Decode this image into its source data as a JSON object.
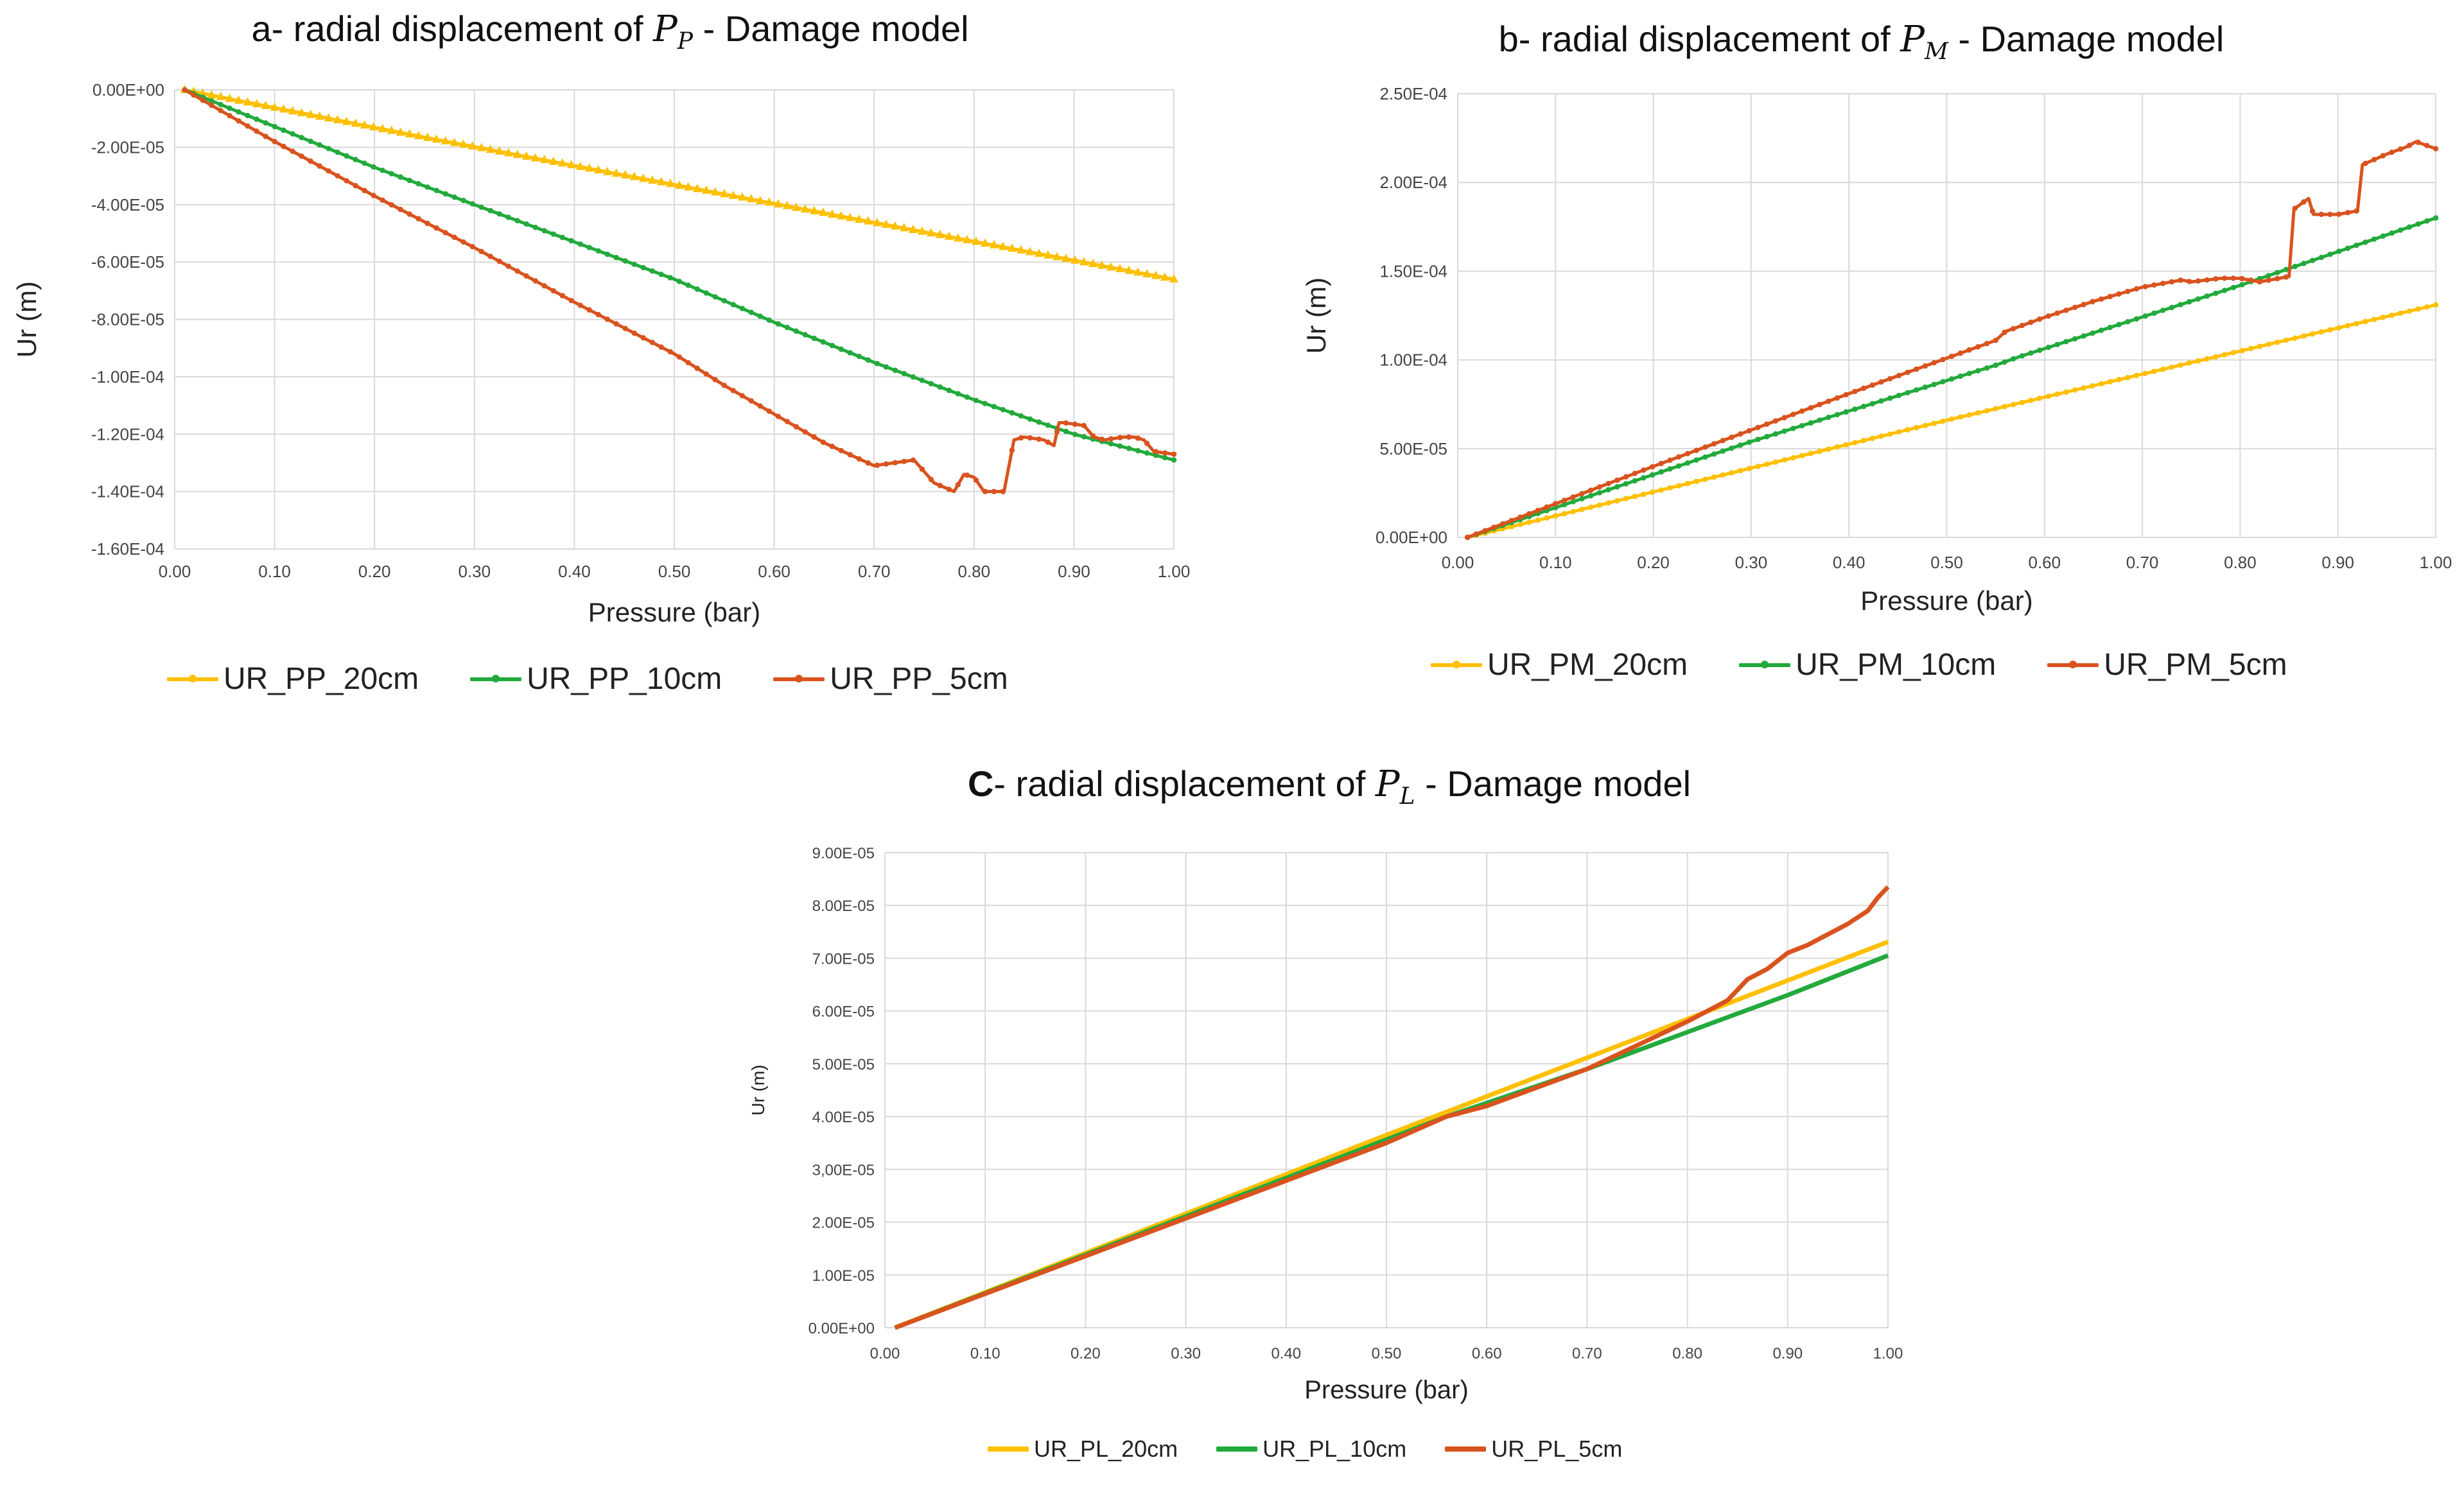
{
  "chart_data": [
    {
      "type": "line",
      "title_prefix": "a- radial displacement of ",
      "title_symbol": "P",
      "title_subscript": "P",
      "title_suffix": " - Damage model",
      "xlabel": "Pressure (bar)",
      "ylabel": "Ur (m)",
      "xlim": [
        0,
        1
      ],
      "ylim": [
        -0.00016,
        0
      ],
      "x_ticks": [
        "0.00",
        "0.10",
        "0.20",
        "0.30",
        "0.40",
        "0.50",
        "0.60",
        "0.70",
        "0.80",
        "0.90",
        "1.00"
      ],
      "y_ticks": [
        "0.00E+00",
        "-2.00E-05",
        "-4.00E-05",
        "-6.00E-05",
        "-8.00E-05",
        "-1.00E-04",
        "-1.20E-04",
        "-1.40E-04",
        "-1.60E-04"
      ],
      "grid": true,
      "series": [
        {
          "name": "UR_PP_20cm",
          "color": "#FFC000",
          "x": [
            0.01,
            0.25,
            0.5,
            0.75,
            1.0
          ],
          "y": [
            0,
            -1.65e-05,
            -3.3e-05,
            -4.95e-05,
            -6.6e-05
          ]
        },
        {
          "name": "UR_PP_10cm",
          "color": "#22AA3C",
          "x": [
            0.01,
            0.2,
            0.4,
            0.5,
            0.6,
            0.7,
            0.8,
            0.9,
            1.0
          ],
          "y": [
            0,
            -2.7e-05,
            -5.3e-05,
            -6.6e-05,
            -8.1e-05,
            -9.5e-05,
            -0.000108,
            -0.00012,
            -0.000129
          ]
        },
        {
          "name": "UR_PP_5cm",
          "color": "#D9531E",
          "x": [
            0.01,
            0.1,
            0.2,
            0.3,
            0.4,
            0.5,
            0.55,
            0.6,
            0.65,
            0.7,
            0.72,
            0.74,
            0.76,
            0.78,
            0.79,
            0.8,
            0.81,
            0.83,
            0.84,
            0.85,
            0.87,
            0.88,
            0.885,
            0.89,
            0.91,
            0.92,
            0.93,
            0.95,
            0.96,
            0.97,
            0.98,
            1.0
          ],
          "y": [
            0,
            -1.8e-05,
            -3.7e-05,
            -5.5e-05,
            -7.4e-05,
            -9.2e-05,
            -0.000103,
            -0.000113,
            -0.000123,
            -0.000131,
            -0.00013,
            -0.000129,
            -0.000137,
            -0.00014,
            -0.000134,
            -0.000135,
            -0.00014,
            -0.00014,
            -0.000122,
            -0.000121,
            -0.000122,
            -0.000124,
            -0.000116,
            -0.000116,
            -0.000117,
            -0.000121,
            -0.000122,
            -0.000121,
            -0.000121,
            -0.000122,
            -0.000126,
            -0.000127
          ]
        }
      ]
    },
    {
      "type": "line",
      "title_prefix": "b- radial displacement of ",
      "title_symbol": "P",
      "title_subscript": "M",
      "title_suffix": " - Damage model",
      "xlabel": "Pressure (bar)",
      "ylabel": "Ur (m)",
      "xlim": [
        0,
        1
      ],
      "ylim": [
        0,
        0.00025
      ],
      "x_ticks": [
        "0.00",
        "0.10",
        "0.20",
        "0.30",
        "0.40",
        "0.50",
        "0.60",
        "0.70",
        "0.80",
        "0.90",
        "1.00"
      ],
      "y_ticks": [
        "0.00E+00",
        "5.00E-05",
        "1.00E-04",
        "1.50E-04",
        "2.00E-04",
        "2.50E-04"
      ],
      "grid": true,
      "series": [
        {
          "name": "UR_PM_20cm",
          "color": "#FFC000",
          "x": [
            0.01,
            0.5,
            1.0
          ],
          "y": [
            0,
            6.6e-05,
            0.000131
          ]
        },
        {
          "name": "UR_PM_10cm",
          "color": "#22AA3C",
          "x": [
            0.01,
            0.3,
            0.55,
            0.57,
            0.8,
            1.0
          ],
          "y": [
            0,
            5.4e-05,
            9.7e-05,
            0.000101,
            0.000142,
            0.00018
          ]
        },
        {
          "name": "UR_PM_5cm",
          "color": "#D9531E",
          "x": [
            0.01,
            0.2,
            0.4,
            0.55,
            0.56,
            0.6,
            0.65,
            0.7,
            0.74,
            0.75,
            0.78,
            0.8,
            0.82,
            0.84,
            0.85,
            0.855,
            0.86,
            0.87,
            0.875,
            0.9,
            0.92,
            0.925,
            0.95,
            0.97,
            0.98,
            0.99,
            1.0
          ],
          "y": [
            0,
            4e-05,
            8.1e-05,
            0.000111,
            0.000116,
            0.000124,
            0.000133,
            0.000141,
            0.000145,
            0.000144,
            0.000146,
            0.000146,
            0.000144,
            0.000146,
            0.000147,
            0.000185,
            0.000187,
            0.000191,
            0.000182,
            0.000182,
            0.000184,
            0.00021,
            0.000216,
            0.00022,
            0.000223,
            0.000221,
            0.000219
          ]
        }
      ]
    },
    {
      "type": "line",
      "title_prefix": "C",
      "title_prefix_rest": "- radial displacement of ",
      "title_symbol": "P",
      "title_subscript": "L",
      "title_suffix": " - Damage model",
      "xlabel": "Pressure (bar)",
      "ylabel": "Ur (m)",
      "xlim": [
        0,
        1
      ],
      "ylim": [
        0,
        9e-05
      ],
      "x_ticks": [
        "0.00",
        "0.10",
        "0.20",
        "0.30",
        "0.40",
        "0.50",
        "0.60",
        "0.70",
        "0.80",
        "0.90",
        "1.00"
      ],
      "y_ticks": [
        "0.00E+00",
        "1.00E-05",
        "2.00E-05",
        "3,00E-05",
        "4.00E-05",
        "5.00E-05",
        "6.00E-05",
        "7.00E-05",
        "8.00E-05",
        "9.00E-05"
      ],
      "grid": true,
      "series": [
        {
          "name": "UR_PL_20cm",
          "color": "#FFC000",
          "x": [
            0.01,
            0.5,
            1.0
          ],
          "y": [
            0,
            3.65e-05,
            7.31e-05
          ]
        },
        {
          "name": "UR_PL_10cm",
          "color": "#22AA3C",
          "x": [
            0.01,
            0.56,
            0.7,
            0.8,
            0.9,
            1.0
          ],
          "y": [
            0,
            4e-05,
            4.9e-05,
            5.6e-05,
            6.3e-05,
            7.05e-05
          ]
        },
        {
          "name": "UR_PL_5cm",
          "color": "#D9531E",
          "x": [
            0.01,
            0.5,
            0.56,
            0.6,
            0.7,
            0.8,
            0.84,
            0.85,
            0.86,
            0.88,
            0.9,
            0.92,
            0.94,
            0.96,
            0.98,
            0.99,
            1.0
          ],
          "y": [
            0,
            3.5e-05,
            4e-05,
            4.2e-05,
            4.9e-05,
            5.8e-05,
            6.2e-05,
            6.4e-05,
            6.6e-05,
            6.8e-05,
            7.1e-05,
            7.25e-05,
            7.45e-05,
            7.65e-05,
            7.9e-05,
            8.15e-05,
            8.35e-05
          ]
        }
      ]
    }
  ]
}
